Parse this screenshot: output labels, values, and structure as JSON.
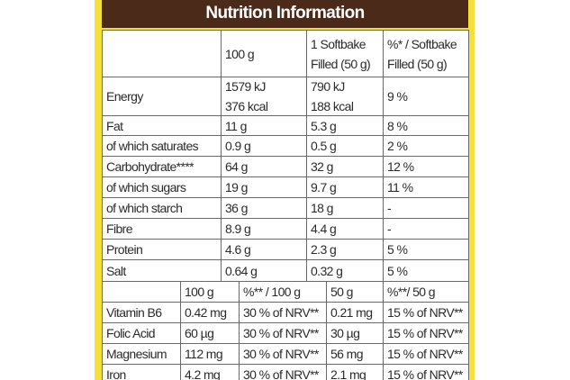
{
  "title": "Nutrition Information",
  "table": {
    "header": [
      [],
      [
        "100 g"
      ],
      [
        "1 Softbake",
        "Filled (50 g)"
      ],
      [
        "%* / Softbake",
        "Filled (50 g)"
      ]
    ],
    "rows": [
      [
        [
          "Energy"
        ],
        [
          "1579 kJ",
          "376 kcal"
        ],
        [
          "790 kJ",
          "188 kcal"
        ],
        [
          "9 %"
        ]
      ],
      [
        [
          "Fat"
        ],
        [
          "11 g"
        ],
        [
          "5.3 g"
        ],
        [
          "8 %"
        ]
      ],
      [
        [
          "of which saturates"
        ],
        [
          "0.9 g"
        ],
        [
          "0.5 g"
        ],
        [
          "2 %"
        ]
      ],
      [
        [
          "Carbohydrate****"
        ],
        [
          "64 g"
        ],
        [
          "32 g"
        ],
        [
          "12 %"
        ]
      ],
      [
        [
          "of which sugars"
        ],
        [
          "19 g"
        ],
        [
          "9.7 g"
        ],
        [
          "11 %"
        ]
      ],
      [
        [
          "of which starch"
        ],
        [
          "36 g"
        ],
        [
          "18 g"
        ],
        [
          "-"
        ]
      ],
      [
        [
          "Fibre"
        ],
        [
          "8.9 g"
        ],
        [
          "4.4 g"
        ],
        [
          "-"
        ]
      ],
      [
        [
          "Protein"
        ],
        [
          "4.6 g"
        ],
        [
          "2.3 g"
        ],
        [
          "5 %"
        ]
      ],
      [
        [
          "Salt"
        ],
        [
          "0.64 g"
        ],
        [
          "0.32 g"
        ],
        [
          "5 %"
        ]
      ]
    ]
  },
  "vitamins": {
    "header": [
      [],
      [
        "100 g"
      ],
      [
        "%** / 100 g"
      ],
      [
        "50 g"
      ],
      [
        "%**/ 50 g"
      ]
    ],
    "rows": [
      [
        [
          "Vitamin B6"
        ],
        [
          "0.42 mg"
        ],
        [
          "30 % of NRV**"
        ],
        [
          "0.21 mg"
        ],
        [
          "15 % of NRV**"
        ]
      ],
      [
        [
          "Folic Acid"
        ],
        [
          "60 µg"
        ],
        [
          "30 % of NRV**"
        ],
        [
          "30 µg"
        ],
        [
          "15 % of NRV**"
        ]
      ],
      [
        [
          "Magnesium"
        ],
        [
          "112 mg"
        ],
        [
          "30 % of NRV**"
        ],
        [
          "56 mg"
        ],
        [
          "15 % of NRV**"
        ]
      ],
      [
        [
          "Iron"
        ],
        [
          "4.2 mg"
        ],
        [
          "30 % of NRV**"
        ],
        [
          "2.1 mg"
        ],
        [
          "15 % of NRV**"
        ]
      ]
    ]
  }
}
